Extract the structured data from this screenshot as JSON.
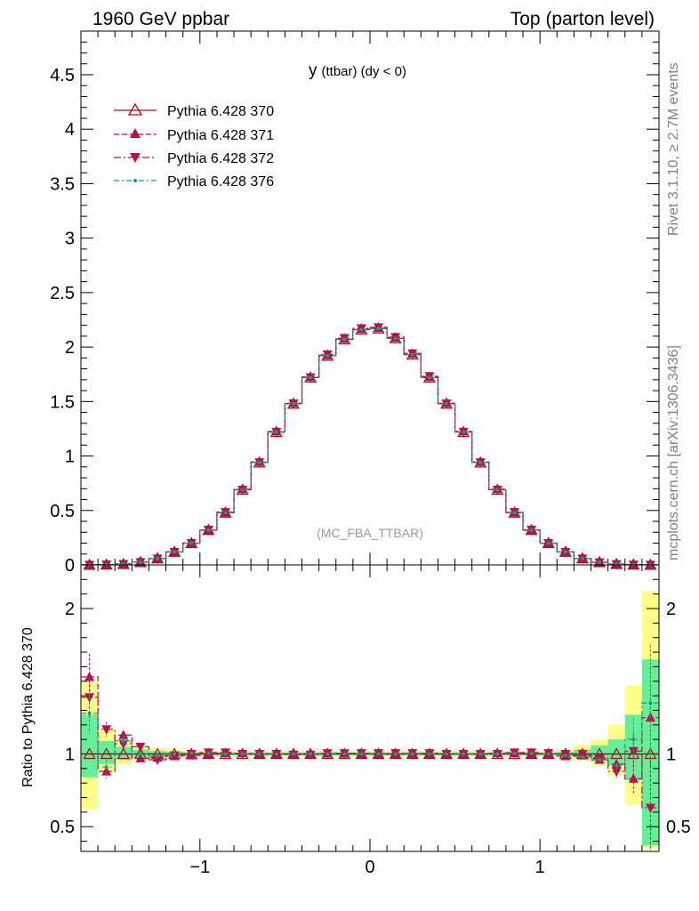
{
  "header": {
    "left": "1960 GeV ppbar",
    "right": "Top (parton level)"
  },
  "side_text": {
    "rivet": "Rivet 3.1.10, ≥ 2.7M events",
    "mcplots": "mcplots.cern.ch [arXiv:1306.3436]"
  },
  "chart_data": [
    {
      "type": "line",
      "title": "y (ttbar) (dy < 0)",
      "title_main": "y",
      "title_sub": "(ttbar) (dy < 0)",
      "watermark": "(MC_FBA_TTBAR)",
      "xlim": [
        -1.7,
        1.7
      ],
      "ylim": [
        0,
        4.9
      ],
      "x_ticks": [
        -1,
        0,
        1
      ],
      "y_ticks": [
        0,
        0.5,
        1,
        1.5,
        2,
        2.5,
        3,
        3.5,
        4,
        4.5
      ],
      "y_tick_labels": [
        "0",
        "0.5",
        "1",
        "1.5",
        "2",
        "2.5",
        "3",
        "3.5",
        "4",
        "4.5"
      ],
      "legend_position": "top-left",
      "x": [
        -1.65,
        -1.55,
        -1.45,
        -1.35,
        -1.25,
        -1.15,
        -1.05,
        -0.95,
        -0.85,
        -0.75,
        -0.65,
        -0.55,
        -0.45,
        -0.35,
        -0.25,
        -0.15,
        -0.05,
        0.05,
        0.15,
        0.25,
        0.35,
        0.45,
        0.55,
        0.65,
        0.75,
        0.85,
        0.95,
        1.05,
        1.15,
        1.25,
        1.35,
        1.45,
        1.55,
        1.65
      ],
      "series": [
        {
          "name": "Pythia 6.428 370",
          "color": "#9b111e",
          "dash": "",
          "marker": "triangle-up-open",
          "values": [
            0.001,
            0.003,
            0.008,
            0.025,
            0.06,
            0.12,
            0.2,
            0.32,
            0.48,
            0.69,
            0.94,
            1.22,
            1.48,
            1.72,
            1.92,
            2.07,
            2.16,
            2.17,
            2.08,
            1.93,
            1.72,
            1.48,
            1.22,
            0.94,
            0.69,
            0.48,
            0.32,
            0.2,
            0.12,
            0.06,
            0.025,
            0.008,
            0.003,
            0.001
          ]
        },
        {
          "name": "Pythia 6.428 371",
          "color": "#b5114d",
          "dash": "6,3",
          "marker": "triangle-up-filled",
          "values": [
            0.0015,
            0.0035,
            0.009,
            0.026,
            0.058,
            0.118,
            0.198,
            0.318,
            0.482,
            0.695,
            0.945,
            1.225,
            1.485,
            1.725,
            1.925,
            2.075,
            2.165,
            2.175,
            2.085,
            1.935,
            1.725,
            1.485,
            1.225,
            0.945,
            0.695,
            0.482,
            0.318,
            0.198,
            0.118,
            0.058,
            0.024,
            0.007,
            0.0025,
            0.0012
          ]
        },
        {
          "name": "Pythia 6.428 372",
          "color": "#b5114d",
          "dash": "8,3,2,3",
          "marker": "triangle-down-filled",
          "values": [
            0.0014,
            0.0033,
            0.0085,
            0.026,
            0.058,
            0.119,
            0.2,
            0.323,
            0.485,
            0.69,
            0.942,
            1.222,
            1.482,
            1.722,
            1.932,
            2.082,
            2.172,
            2.182,
            2.092,
            1.942,
            1.732,
            1.482,
            1.222,
            0.942,
            0.69,
            0.485,
            0.323,
            0.2,
            0.119,
            0.058,
            0.023,
            0.007,
            0.0025,
            0.0006
          ]
        },
        {
          "name": "Pythia 6.428 376",
          "color": "#1a9e77",
          "dash": "6,3,2,3",
          "marker": "dot",
          "values": [
            0.0012,
            0.0034,
            0.0085,
            0.025,
            0.06,
            0.12,
            0.2,
            0.32,
            0.48,
            0.69,
            0.94,
            1.22,
            1.48,
            1.72,
            1.92,
            2.07,
            2.16,
            2.17,
            2.08,
            1.93,
            1.72,
            1.48,
            1.22,
            0.94,
            0.69,
            0.48,
            0.32,
            0.2,
            0.12,
            0.06,
            0.025,
            0.008,
            0.003,
            0.0012
          ]
        }
      ]
    },
    {
      "type": "line",
      "ylabel": "Ratio to Pythia 6.428 370",
      "xlim": [
        -1.7,
        1.7
      ],
      "ylim": [
        0.33,
        2.3
      ],
      "x_ticks": [
        -1,
        0,
        1
      ],
      "x_tick_labels": [
        "−1",
        "0",
        "1"
      ],
      "y_ticks": [
        0.5,
        1,
        2
      ],
      "y_tick_labels": [
        "0.5",
        "1",
        "2"
      ],
      "reference_line": 1,
      "x": [
        -1.65,
        -1.55,
        -1.45,
        -1.35,
        -1.25,
        -1.15,
        -1.05,
        -0.95,
        -0.85,
        -0.75,
        -0.65,
        -0.55,
        -0.45,
        -0.35,
        -0.25,
        -0.15,
        -0.05,
        0.05,
        0.15,
        0.25,
        0.35,
        0.45,
        0.55,
        0.65,
        0.75,
        0.85,
        0.95,
        1.05,
        1.15,
        1.25,
        1.35,
        1.45,
        1.55,
        1.65
      ],
      "band_green": [
        [
          0.84,
          1.27
        ],
        [
          0.93,
          1.09
        ],
        [
          0.96,
          1.05
        ],
        [
          0.975,
          1.03
        ],
        [
          0.98,
          1.02
        ],
        [
          0.985,
          1.015
        ],
        [
          0.99,
          1.01
        ],
        [
          0.99,
          1.01
        ],
        [
          0.99,
          1.01
        ],
        [
          0.99,
          1.01
        ],
        [
          0.99,
          1.01
        ],
        [
          0.99,
          1.01
        ],
        [
          0.99,
          1.01
        ],
        [
          0.99,
          1.01
        ],
        [
          0.99,
          1.01
        ],
        [
          0.99,
          1.01
        ],
        [
          0.99,
          1.01
        ],
        [
          0.99,
          1.01
        ],
        [
          0.99,
          1.01
        ],
        [
          0.99,
          1.01
        ],
        [
          0.99,
          1.01
        ],
        [
          0.99,
          1.01
        ],
        [
          0.99,
          1.01
        ],
        [
          0.99,
          1.01
        ],
        [
          0.99,
          1.01
        ],
        [
          0.99,
          1.01
        ],
        [
          0.99,
          1.01
        ],
        [
          0.99,
          1.01
        ],
        [
          0.985,
          1.015
        ],
        [
          0.975,
          1.03
        ],
        [
          0.95,
          1.06
        ],
        [
          0.92,
          1.1
        ],
        [
          0.82,
          1.27
        ],
        [
          0.37,
          1.65
        ]
      ],
      "band_yellow": [
        [
          0.62,
          1.5
        ],
        [
          0.88,
          1.17
        ],
        [
          0.93,
          1.09
        ],
        [
          0.955,
          1.06
        ],
        [
          0.965,
          1.04
        ],
        [
          0.975,
          1.03
        ],
        [
          0.985,
          1.02
        ],
        [
          0.985,
          1.02
        ],
        [
          0.985,
          1.02
        ],
        [
          0.985,
          1.02
        ],
        [
          0.985,
          1.02
        ],
        [
          0.985,
          1.02
        ],
        [
          0.985,
          1.02
        ],
        [
          0.985,
          1.02
        ],
        [
          0.985,
          1.02
        ],
        [
          0.985,
          1.02
        ],
        [
          0.985,
          1.02
        ],
        [
          0.985,
          1.02
        ],
        [
          0.985,
          1.02
        ],
        [
          0.985,
          1.02
        ],
        [
          0.985,
          1.02
        ],
        [
          0.985,
          1.02
        ],
        [
          0.985,
          1.02
        ],
        [
          0.985,
          1.02
        ],
        [
          0.985,
          1.02
        ],
        [
          0.985,
          1.02
        ],
        [
          0.985,
          1.02
        ],
        [
          0.985,
          1.02
        ],
        [
          0.975,
          1.03
        ],
        [
          0.955,
          1.06
        ],
        [
          0.92,
          1.1
        ],
        [
          0.85,
          1.2
        ],
        [
          0.65,
          1.47
        ],
        [
          0.35,
          2.12
        ]
      ],
      "series": [
        {
          "name": "Pythia 6.428 370",
          "color": "#9b111e",
          "dash": "",
          "marker": "triangle-up-open",
          "values": [
            1,
            1,
            1,
            1,
            1,
            1,
            1,
            1,
            1,
            1,
            1,
            1,
            1,
            1,
            1,
            1,
            1,
            1,
            1,
            1,
            1,
            1,
            1,
            1,
            1,
            1,
            1,
            1,
            1,
            1,
            1,
            1,
            1,
            1
          ]
        },
        {
          "name": "Pythia 6.428 371",
          "color": "#b5114d",
          "dash": "6,3",
          "marker": "triangle-up-filled",
          "errors": [
            0.16,
            0.05,
            0.03,
            0.02,
            0.01,
            0.01,
            0.005,
            0.005,
            0.005,
            0.005,
            0.005,
            0.005,
            0.005,
            0.005,
            0.005,
            0.005,
            0.005,
            0.005,
            0.005,
            0.005,
            0.005,
            0.005,
            0.005,
            0.005,
            0.005,
            0.005,
            0.005,
            0.005,
            0.01,
            0.01,
            0.02,
            0.04,
            0.1,
            0.35
          ],
          "values": [
            1.53,
            0.88,
            1.13,
            0.97,
            0.975,
            0.985,
            0.99,
            1.0,
            1.005,
            1.005,
            1.0,
            1.0,
            1.0,
            1.0,
            1.003,
            1.003,
            1.0,
            1.0,
            1.0,
            1.0,
            1.0,
            1.0,
            1.0,
            1.0,
            1.005,
            1.005,
            1.0,
            1.0,
            0.985,
            0.99,
            0.96,
            0.93,
            0.83,
            1.25
          ]
        },
        {
          "name": "Pythia 6.428 372",
          "color": "#b5114d",
          "dash": "8,3,2,3",
          "marker": "triangle-down-filled",
          "errors": [
            0.15,
            0.05,
            0.03,
            0.02,
            0.01,
            0.01,
            0.005,
            0.005,
            0.005,
            0.005,
            0.005,
            0.005,
            0.005,
            0.005,
            0.005,
            0.005,
            0.005,
            0.005,
            0.005,
            0.005,
            0.005,
            0.005,
            0.005,
            0.005,
            0.005,
            0.005,
            0.005,
            0.005,
            0.01,
            0.01,
            0.02,
            0.04,
            0.12,
            0.35
          ],
          "values": [
            1.39,
            1.17,
            1.07,
            1.05,
            0.96,
            0.99,
            1.0,
            1.01,
            1.01,
            1.0,
            1.0,
            1.0,
            0.995,
            0.995,
            1.005,
            1.005,
            1.005,
            1.005,
            1.005,
            1.005,
            1.005,
            1.0,
            1.0,
            1.0,
            1.0,
            1.01,
            1.01,
            1.005,
            1.0,
            1.0,
            0.97,
            0.88,
            1.02,
            0.63
          ]
        },
        {
          "name": "Pythia 6.428 376",
          "color": "#1a9e77",
          "dash": "6,3,2,3",
          "marker": "dot",
          "errors": [
            0.14,
            0.05,
            0.03,
            0.02,
            0.01,
            0.01,
            0.005,
            0.005,
            0.005,
            0.005,
            0.005,
            0.005,
            0.005,
            0.005,
            0.005,
            0.005,
            0.005,
            0.005,
            0.005,
            0.005,
            0.005,
            0.005,
            0.005,
            0.005,
            0.005,
            0.005,
            0.005,
            0.005,
            0.01,
            0.01,
            0.02,
            0.05,
            0.15,
            0.4
          ],
          "values": [
            1.28,
            0.91,
            1.09,
            1.0,
            0.985,
            1.0,
            1.005,
            1.005,
            1.0,
            1.0,
            1.0,
            1.0,
            1.0,
            1.0,
            1.0,
            1.0,
            1.0,
            1.0,
            1.0,
            1.0,
            1.0,
            1.0,
            1.0,
            1.0,
            1.0,
            1.005,
            1.005,
            1.0,
            0.99,
            0.98,
            0.96,
            0.92,
            1.1,
            1.35
          ]
        }
      ]
    }
  ]
}
